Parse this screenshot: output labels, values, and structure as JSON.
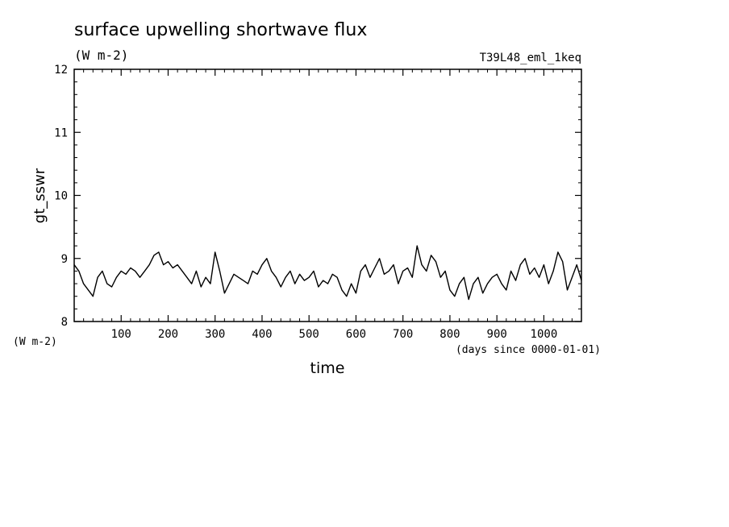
{
  "chart_data": {
    "type": "line",
    "title": "surface upwelling shortwave flux",
    "subtitle": "(W m-2)",
    "run_label": "T39L48_eml_1keq",
    "xlabel": "time",
    "x_unit": "(days since 0000-01-01)",
    "ylabel": "gt_sswr",
    "y_unit": "(W m-2)",
    "xlim": [
      0,
      1080
    ],
    "ylim": [
      8,
      12
    ],
    "x_ticks": [
      100,
      200,
      300,
      400,
      500,
      600,
      700,
      800,
      900,
      1000
    ],
    "y_ticks": [
      8,
      9,
      10,
      11,
      12
    ],
    "x_tick_labels": [
      "100",
      "200",
      "300",
      "400",
      "500",
      "600",
      "700",
      "800",
      "900",
      "1000"
    ],
    "y_tick_labels": [
      "8",
      "9",
      "10",
      "11",
      "12"
    ],
    "line_color": "#000000",
    "grid": false,
    "series": [
      {
        "x": [
          0,
          10,
          20,
          30,
          40,
          50,
          60,
          70,
          80,
          90,
          100,
          110,
          120,
          130,
          140,
          150,
          160,
          170,
          180,
          190,
          200,
          210,
          220,
          230,
          240,
          250,
          260,
          270,
          280,
          290,
          300,
          310,
          320,
          330,
          340,
          350,
          360,
          370,
          380,
          390,
          400,
          410,
          420,
          430,
          440,
          450,
          460,
          470,
          480,
          490,
          500,
          510,
          520,
          530,
          540,
          550,
          560,
          570,
          580,
          590,
          600,
          610,
          620,
          630,
          640,
          650,
          660,
          670,
          680,
          690,
          700,
          710,
          720,
          730,
          740,
          750,
          760,
          770,
          780,
          790,
          800,
          810,
          820,
          830,
          840,
          850,
          860,
          870,
          880,
          890,
          900,
          910,
          920,
          930,
          940,
          950,
          960,
          970,
          980,
          990,
          1000,
          1010,
          1020,
          1030,
          1040,
          1050,
          1060,
          1070,
          1080
        ],
        "y": [
          8.9,
          8.8,
          8.6,
          8.5,
          8.4,
          8.7,
          8.8,
          8.6,
          8.55,
          8.7,
          8.8,
          8.75,
          8.85,
          8.8,
          8.7,
          8.8,
          8.9,
          9.05,
          9.1,
          8.9,
          8.95,
          8.85,
          8.9,
          8.8,
          8.7,
          8.6,
          8.8,
          8.55,
          8.7,
          8.6,
          9.1,
          8.8,
          8.45,
          8.6,
          8.75,
          8.7,
          8.65,
          8.6,
          8.8,
          8.75,
          8.9,
          9.0,
          8.8,
          8.7,
          8.55,
          8.7,
          8.8,
          8.6,
          8.75,
          8.65,
          8.7,
          8.8,
          8.55,
          8.65,
          8.6,
          8.75,
          8.7,
          8.5,
          8.4,
          8.6,
          8.45,
          8.8,
          8.9,
          8.7,
          8.85,
          9.0,
          8.75,
          8.8,
          8.9,
          8.6,
          8.8,
          8.85,
          8.7,
          9.2,
          8.9,
          8.8,
          9.05,
          8.95,
          8.7,
          8.8,
          8.5,
          8.4,
          8.6,
          8.7,
          8.35,
          8.6,
          8.7,
          8.45,
          8.6,
          8.7,
          8.75,
          8.6,
          8.5,
          8.8,
          8.65,
          8.9,
          9.0,
          8.75,
          8.85,
          8.7,
          8.9,
          8.6,
          8.8,
          9.1,
          8.95,
          8.5,
          8.7,
          8.9,
          8.65
        ]
      }
    ]
  }
}
